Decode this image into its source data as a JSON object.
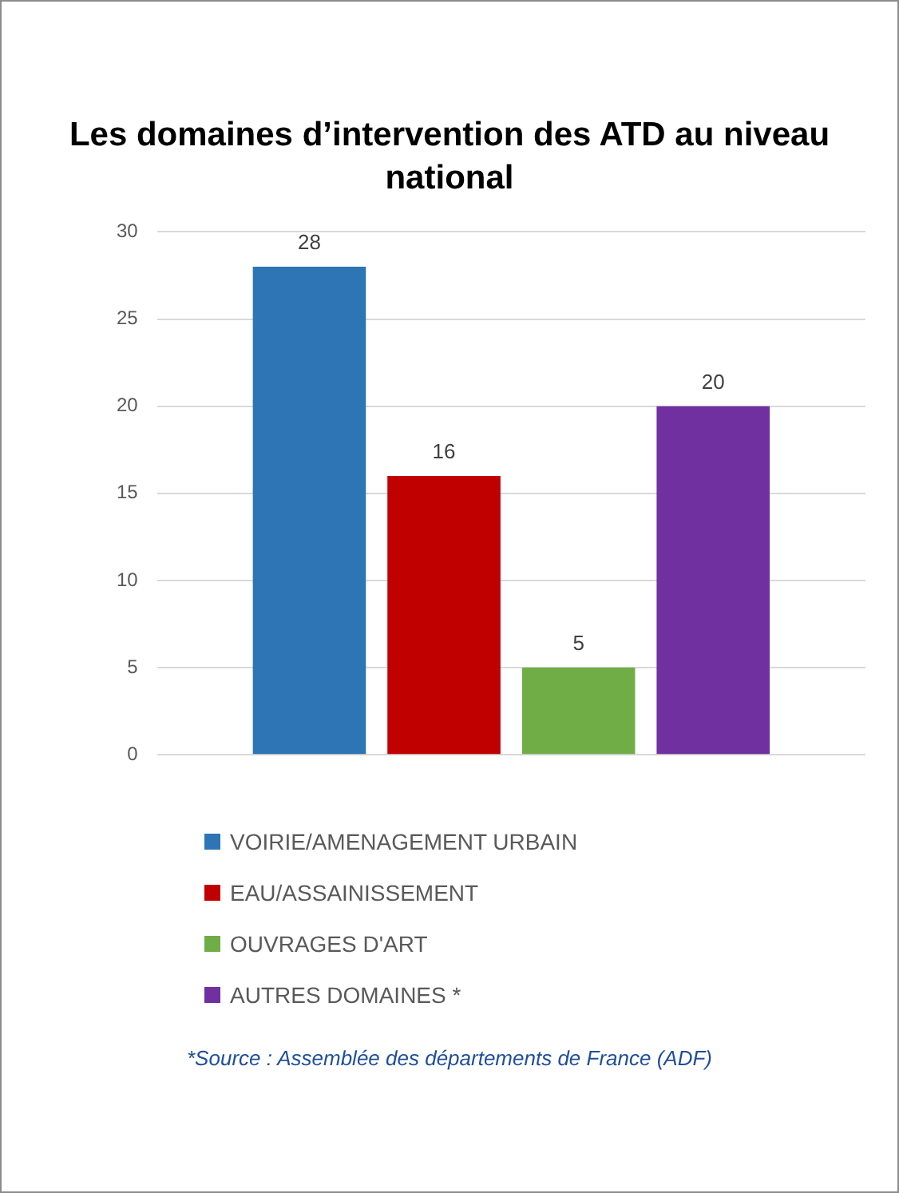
{
  "chart_data": {
    "type": "bar",
    "title": "Les domaines d’intervention des ATD au niveau national",
    "categories": [
      null
    ],
    "series": [
      {
        "name": "VOIRIE/AMENAGEMENT URBAIN",
        "color": "#2e75b6",
        "values": [
          28
        ]
      },
      {
        "name": "EAU/ASSAINISSEMENT",
        "color": "#c00000",
        "values": [
          16
        ]
      },
      {
        "name": "OUVRAGES D'ART",
        "color": "#70ad47",
        "values": [
          5
        ]
      },
      {
        "name": "AUTRES DOMAINES *",
        "color": "#7030a0",
        "values": [
          20
        ]
      }
    ],
    "ylim": [
      0,
      30
    ],
    "yticks": [
      0,
      5,
      10,
      15,
      20,
      25,
      30
    ],
    "grid": "y",
    "legend": "bottom",
    "data_labels": true,
    "annotations": [
      "*Source : Assemblée des départements de France (ADF)"
    ]
  }
}
